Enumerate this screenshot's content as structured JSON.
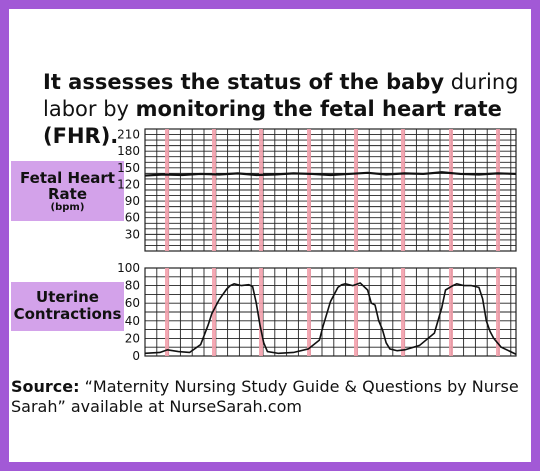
{
  "headline": {
    "part1": "It assesses the status of the baby",
    "part2": " during labor by ",
    "part3": "monitoring the fetal heart rate (FHR)."
  },
  "fhr_label": {
    "main": "Fetal Heart Rate",
    "sub": "(bpm)"
  },
  "uc_label": {
    "main": "Uterine Contractions"
  },
  "source": {
    "prefix": "Source:",
    "text": " “Maternity Nursing Study Guide & Questions by Nurse Sarah” available at NurseSarah.com"
  },
  "colors": {
    "border": "#a259d6",
    "label_bg": "#d3a2ea",
    "marker": "#f3a0ac",
    "grid": "#222222"
  },
  "chart_data": [
    {
      "type": "line",
      "name": "fetal-heart-rate",
      "yticks": [
        30,
        60,
        90,
        120,
        150,
        180,
        210
      ],
      "ylim": [
        0,
        220
      ],
      "xlim": [
        0,
        100
      ],
      "grid": true,
      "x": [
        0,
        5,
        10,
        15,
        20,
        25,
        30,
        35,
        40,
        45,
        50,
        55,
        60,
        65,
        70,
        75,
        80,
        85,
        90,
        95,
        100
      ],
      "y": [
        136,
        138,
        137,
        139,
        138,
        140,
        137,
        138,
        140,
        139,
        137,
        139,
        141,
        138,
        140,
        139,
        142,
        139,
        138,
        140,
        139
      ]
    },
    {
      "type": "line",
      "name": "uterine-contractions",
      "yticks": [
        0,
        20,
        40,
        60,
        80,
        100
      ],
      "ylim": [
        0,
        100
      ],
      "xlim": [
        0,
        100
      ],
      "grid": true,
      "x": [
        0,
        4,
        6,
        9,
        12,
        15,
        17,
        18,
        20,
        22,
        23,
        24,
        26,
        28,
        29,
        30,
        31,
        32,
        33,
        36,
        40,
        44,
        47,
        48,
        50,
        52,
        53,
        54,
        56,
        58,
        60,
        61,
        62,
        63,
        64,
        65,
        66,
        68,
        70,
        74,
        78,
        80,
        81,
        83,
        84,
        86,
        88,
        90,
        91,
        92,
        93,
        94,
        96,
        100
      ],
      "y": [
        3,
        4,
        7,
        5,
        4,
        13,
        35,
        48,
        64,
        76,
        80,
        82,
        80,
        81,
        79,
        60,
        35,
        15,
        5,
        3,
        4,
        8,
        18,
        34,
        62,
        78,
        81,
        82,
        80,
        83,
        75,
        60,
        58,
        40,
        30,
        15,
        8,
        6,
        7,
        12,
        26,
        55,
        75,
        80,
        82,
        80,
        80,
        78,
        65,
        40,
        28,
        20,
        10,
        2
      ]
    }
  ]
}
